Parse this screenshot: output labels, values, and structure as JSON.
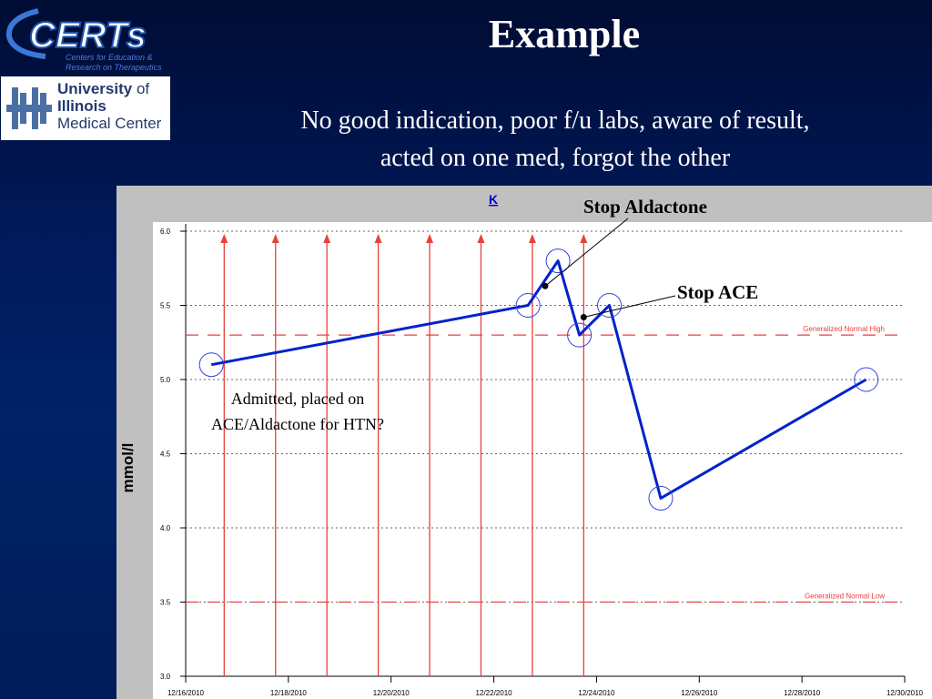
{
  "slide": {
    "title": "Example",
    "subtitle_line1": "No good indication, poor f/u labs, aware of result,",
    "subtitle_line2": "acted on one med, forgot the other"
  },
  "logos": {
    "certs_name": "CERTs",
    "certs_tagline_line1": "Centers for Education &",
    "certs_tagline_line2": "Research on Therapeutics",
    "uic_line1": "University",
    "uic_line1b": "of",
    "uic_line2": "Illinois",
    "uic_line3": "Medical Center"
  },
  "colors": {
    "background": "#001a5c",
    "panel_gray": "#c0c0c0",
    "series_blue": "#0022cc",
    "reference_red": "#e8413c"
  },
  "chart_data": {
    "type": "line",
    "title": "K",
    "ylabel": "mmol/l",
    "xlabel": "",
    "ylim": [
      3.0,
      6.0
    ],
    "yticks": [
      "3.0",
      "3.5",
      "4.0",
      "4.5",
      "5.0",
      "5.5",
      "6.0"
    ],
    "xlim": [
      "12/16/2010",
      "12/30/2010"
    ],
    "xticks": [
      "12/16/2010",
      "12/18/2010",
      "12/20/2010",
      "12/22/2010",
      "12/24/2010",
      "12/26/2010",
      "12/28/2010",
      "12/30/2010"
    ],
    "grid": "horizontal dotted",
    "series": [
      {
        "x": [
          "12/16/2010 12:00",
          "12/22/2010 16:00",
          "12/23/2010 06:00",
          "12/23/2010 16:00",
          "12/24/2010 06:00",
          "12/25/2010 06:00",
          "12/29/2010 06:00"
        ],
        "values": [
          5.1,
          5.5,
          5.8,
          5.3,
          5.5,
          4.2,
          5.0
        ]
      }
    ],
    "reference_lines": [
      {
        "label": "Generalized Normal High",
        "value": 5.3
      },
      {
        "label": "Generalized Normal Low",
        "value": 3.5
      }
    ],
    "event_markers_x": [
      "12/16/2010 18:00",
      "12/17/2010 18:00",
      "12/18/2010 18:00",
      "12/19/2010 18:00",
      "12/20/2010 18:00",
      "12/21/2010 18:00",
      "12/22/2010 18:00",
      "12/23/2010 18:00"
    ],
    "annotations": [
      {
        "text": "Stop Aldactone",
        "x": "12/23/2010 00:00",
        "y": 5.63
      },
      {
        "text": "Stop ACE",
        "x": "12/23/2010 18:00",
        "y": 5.42
      },
      {
        "text": "Admitted, placed on ACE/Aldactone for HTN?"
      }
    ]
  }
}
